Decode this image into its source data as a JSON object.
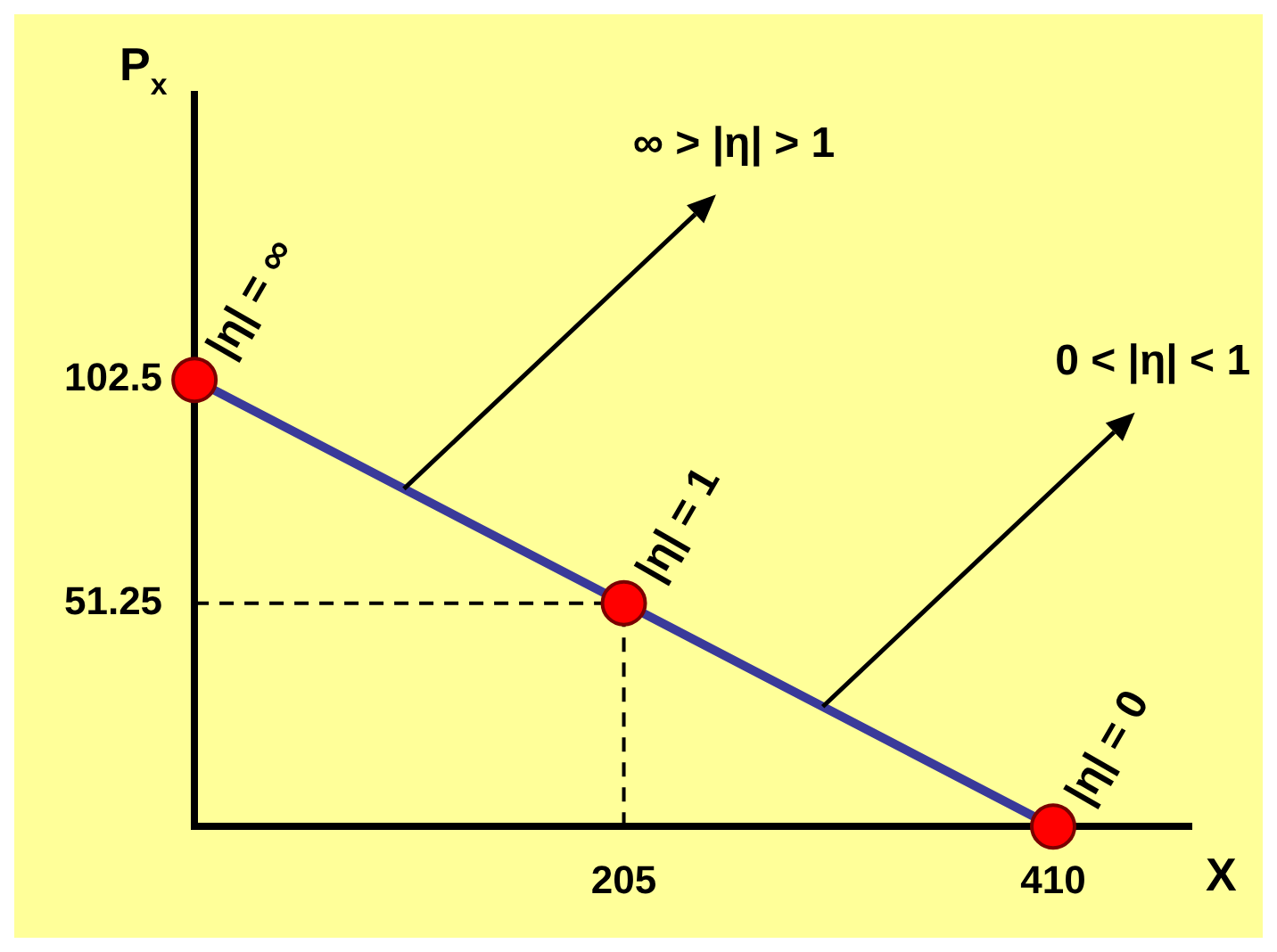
{
  "chart_data": {
    "type": "line",
    "xlabel": "X",
    "ylabel": "P$_{x}$",
    "x": [
      0,
      205,
      410
    ],
    "series": [
      {
        "color": "#3a3a9a",
        "colors": [
          "#ff0000",
          "#ff0000",
          "#ff0000"
        ],
        "values": [
          102.5,
          51.25,
          0
        ]
      }
    ],
    "xlim": [
      0,
      476
    ],
    "ylim": [
      0,
      168
    ],
    "xticks": [
      205,
      410
    ],
    "yticks": [
      51.25,
      102.5
    ],
    "ref_lines": [
      {
        "axis": "x",
        "value": 205,
        "line_style": "dashed",
        "color": "#000000"
      },
      {
        "axis": "y",
        "value": 51.25,
        "line_style": "dashed",
        "color": "#000000"
      }
    ],
    "annotations": [
      {
        "text": "|η| = ∞",
        "x": 0,
        "y": 102.5
      },
      {
        "text": "|η| = 1",
        "x": 205,
        "y": 51.25
      },
      {
        "text": "|η| = 0",
        "x": 410,
        "y": 0
      },
      {
        "text": "∞ > |η| > 1",
        "x": 100,
        "y": 77.5
      },
      {
        "text": "0 < |η| < 1",
        "x": 300,
        "y": 27.5
      }
    ],
    "marker": "circle",
    "line_style": "solid",
    "grid": false,
    "legend": false
  }
}
